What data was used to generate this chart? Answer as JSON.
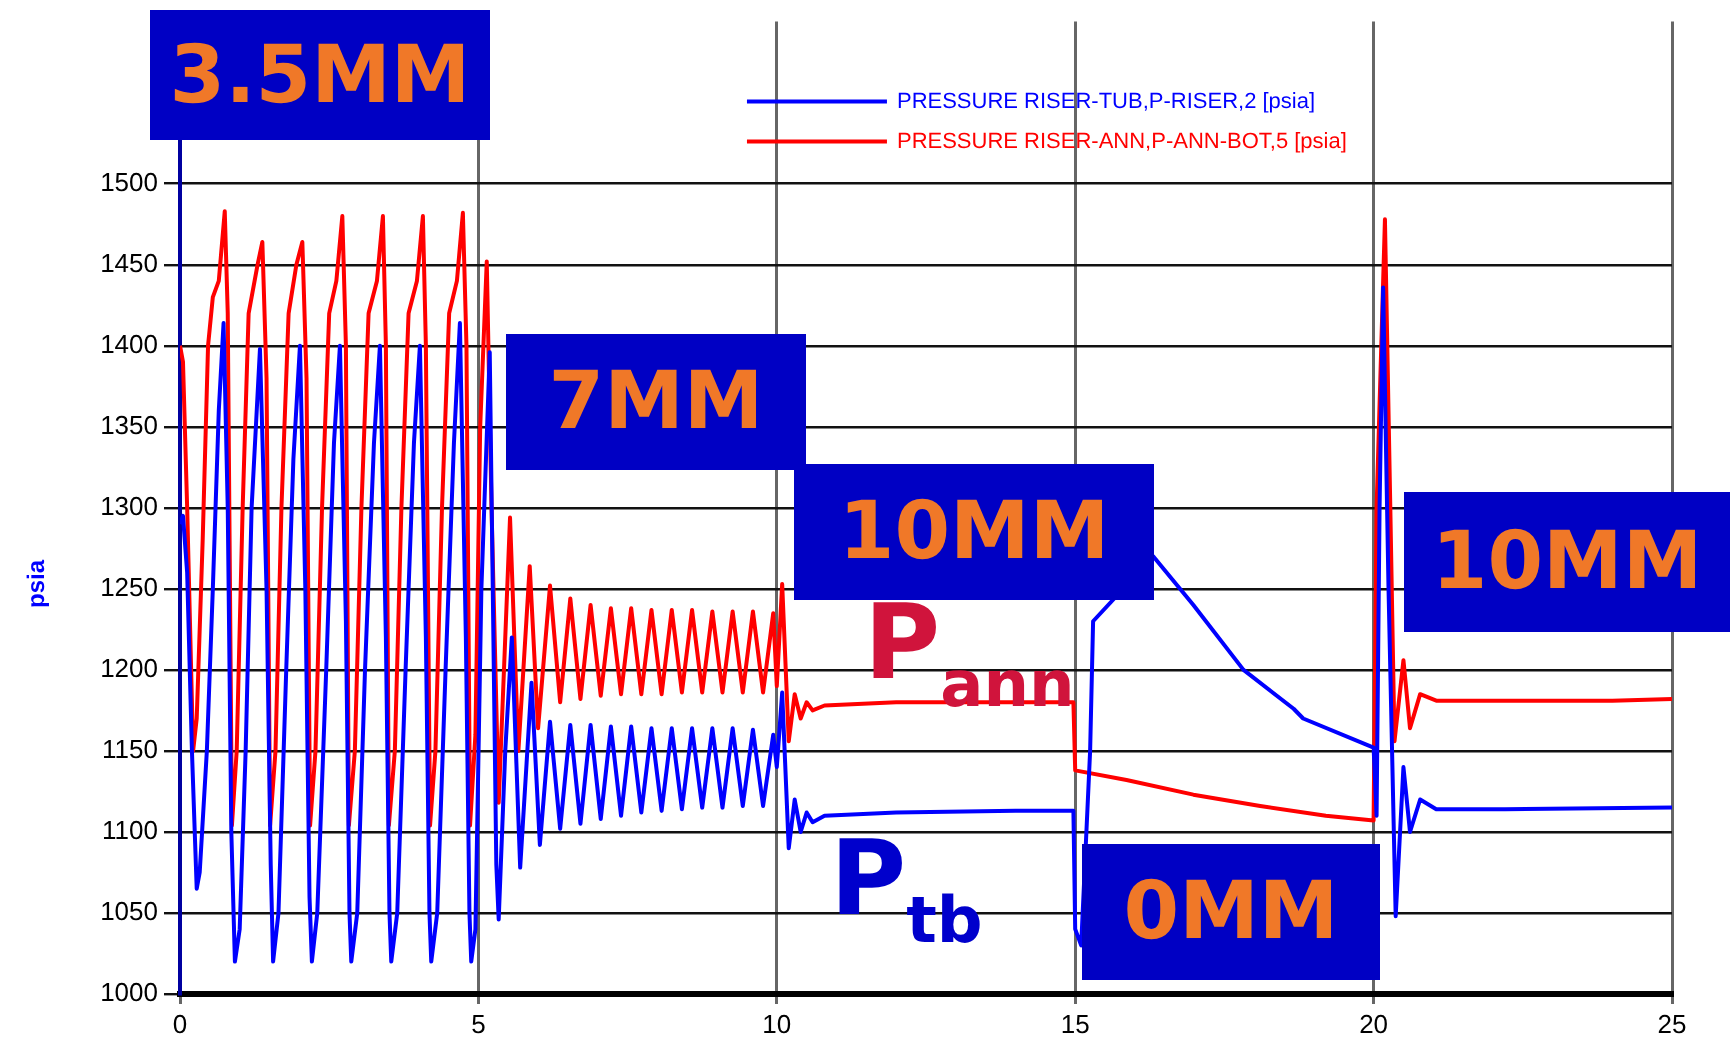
{
  "chart_data": {
    "type": "line",
    "ylabel": "psia",
    "xlim": [
      0,
      25
    ],
    "xticks": [
      0,
      5,
      10,
      15,
      20,
      25
    ],
    "ylim": [
      1000,
      1600
    ],
    "yticks": [
      1000,
      1050,
      1100,
      1150,
      1200,
      1250,
      1300,
      1350,
      1400,
      1450,
      1500
    ],
    "grid": true,
    "legend": "top",
    "marker": "none",
    "line_style": "solid",
    "annotations": [
      "3.5MM",
      "7MM",
      "10MM",
      "P$_{ann}$",
      "P$_{tb}$",
      "0MM",
      "10MM"
    ],
    "series": [
      {
        "name": "PRESSURE RISER-TUB,P-RISER,2 [psia]",
        "color": "#0000ff",
        "x": [
          0,
          0.05,
          0.12,
          0.2,
          0.28,
          0.33,
          0.45,
          0.55,
          0.65,
          0.73,
          0.8,
          0.86,
          0.92,
          1.0,
          1.1,
          1.2,
          1.34,
          1.45,
          1.52,
          1.56,
          1.65,
          1.78,
          1.9,
          2.01,
          2.1,
          2.17,
          2.21,
          2.3,
          2.45,
          2.58,
          2.68,
          2.78,
          2.84,
          2.87,
          2.97,
          3.1,
          3.25,
          3.35,
          3.45,
          3.51,
          3.54,
          3.64,
          3.78,
          3.92,
          4.02,
          4.12,
          4.18,
          4.21,
          4.31,
          4.45,
          4.59,
          4.69,
          4.79,
          4.85,
          4.88,
          4.95,
          5.05,
          5.19,
          5.3,
          5.34,
          5.45,
          5.56,
          5.7,
          5.89,
          6.03,
          6.2,
          6.37,
          6.54,
          6.71,
          6.88,
          7.05,
          7.22,
          7.39,
          7.56,
          7.73,
          7.9,
          8.07,
          8.24,
          8.41,
          8.58,
          8.75,
          8.92,
          9.09,
          9.26,
          9.43,
          9.6,
          9.77,
          9.94,
          10.0,
          10.09,
          10.2,
          10.3,
          10.4,
          10.5,
          10.6,
          10.8,
          12,
          14,
          14.97,
          15.0,
          15.1,
          15.25,
          15.3,
          16.31,
          16.98,
          17.82,
          18.66,
          18.82,
          20.0,
          20.05,
          20.1,
          20.16,
          20.25,
          20.37,
          20.5,
          20.61,
          20.78,
          21.05,
          22.2,
          25
        ],
        "values": [
          1290,
          1295,
          1260,
          1150,
          1065,
          1075,
          1150,
          1250,
          1360,
          1414,
          1300,
          1100,
          1020,
          1040,
          1150,
          1300,
          1398,
          1250,
          1080,
          1020,
          1050,
          1200,
          1330,
          1400,
          1250,
          1060,
          1020,
          1050,
          1200,
          1340,
          1400,
          1230,
          1050,
          1020,
          1050,
          1200,
          1340,
          1400,
          1220,
          1050,
          1020,
          1050,
          1200,
          1340,
          1400,
          1220,
          1050,
          1020,
          1050,
          1200,
          1340,
          1414,
          1220,
          1050,
          1020,
          1040,
          1250,
          1396,
          1080,
          1046,
          1150,
          1220,
          1078,
          1192,
          1092,
          1168,
          1102,
          1166,
          1105,
          1166,
          1108,
          1165,
          1110,
          1165,
          1112,
          1164,
          1113,
          1164,
          1114,
          1164,
          1115,
          1164,
          1115,
          1164,
          1116,
          1163,
          1116,
          1160,
          1140,
          1186,
          1090,
          1120,
          1100,
          1112,
          1106,
          1110,
          1112,
          1113,
          1113,
          1040,
          1030,
          1150,
          1230,
          1270,
          1240,
          1200,
          1176,
          1170,
          1152,
          1110,
          1300,
          1436,
          1250,
          1048,
          1140,
          1100,
          1120,
          1114,
          1114,
          1115
        ]
      },
      {
        "name": "PRESSURE RISER-ANN,P-ANN-BOT,5 [psia]",
        "color": "#ff0000",
        "x": [
          0,
          0.05,
          0.12,
          0.22,
          0.28,
          0.38,
          0.47,
          0.55,
          0.65,
          0.75,
          0.8,
          0.87,
          0.95,
          1.05,
          1.15,
          1.3,
          1.38,
          1.45,
          1.51,
          1.6,
          1.7,
          1.82,
          1.95,
          2.05,
          2.12,
          2.18,
          2.27,
          2.38,
          2.5,
          2.62,
          2.72,
          2.78,
          2.83,
          2.93,
          3.04,
          3.16,
          3.3,
          3.4,
          3.45,
          3.5,
          3.6,
          3.71,
          3.83,
          3.97,
          4.07,
          4.12,
          4.19,
          4.28,
          4.39,
          4.51,
          4.64,
          4.74,
          4.8,
          4.86,
          4.95,
          5.03,
          5.14,
          5.22,
          5.34,
          5.53,
          5.67,
          5.86,
          6.0,
          6.2,
          6.37,
          6.54,
          6.71,
          6.88,
          7.05,
          7.22,
          7.39,
          7.56,
          7.73,
          7.9,
          8.07,
          8.24,
          8.41,
          8.58,
          8.75,
          8.92,
          9.09,
          9.26,
          9.43,
          9.6,
          9.77,
          9.94,
          10.0,
          10.09,
          10.2,
          10.3,
          10.4,
          10.5,
          10.6,
          10.8,
          12,
          14.97,
          15.0,
          15.86,
          16.98,
          18.1,
          19.2,
          20.0,
          20.05,
          20.19,
          20.28,
          20.35,
          20.5,
          20.61,
          20.78,
          21.05,
          24,
          25
        ],
        "values": [
          1400,
          1390,
          1300,
          1150,
          1170,
          1280,
          1400,
          1430,
          1440,
          1483,
          1420,
          1104,
          1150,
          1300,
          1420,
          1450,
          1464,
          1380,
          1104,
          1150,
          1300,
          1420,
          1450,
          1464,
          1380,
          1104,
          1150,
          1300,
          1420,
          1440,
          1480,
          1400,
          1104,
          1150,
          1300,
          1420,
          1440,
          1480,
          1400,
          1104,
          1150,
          1300,
          1420,
          1440,
          1480,
          1400,
          1104,
          1150,
          1300,
          1420,
          1440,
          1482,
          1400,
          1104,
          1160,
          1350,
          1452,
          1300,
          1118,
          1294,
          1150,
          1264,
          1164,
          1252,
          1180,
          1244,
          1182,
          1240,
          1184,
          1238,
          1185,
          1238,
          1185,
          1237,
          1185,
          1237,
          1186,
          1237,
          1186,
          1236,
          1186,
          1236,
          1186,
          1236,
          1186,
          1235,
          1190,
          1253,
          1156,
          1185,
          1170,
          1180,
          1175,
          1178,
          1180,
          1180,
          1138,
          1132,
          1123,
          1116,
          1110,
          1107,
          1300,
          1478,
          1300,
          1156,
          1206,
          1164,
          1185,
          1181,
          1181,
          1182
        ]
      }
    ]
  }
}
